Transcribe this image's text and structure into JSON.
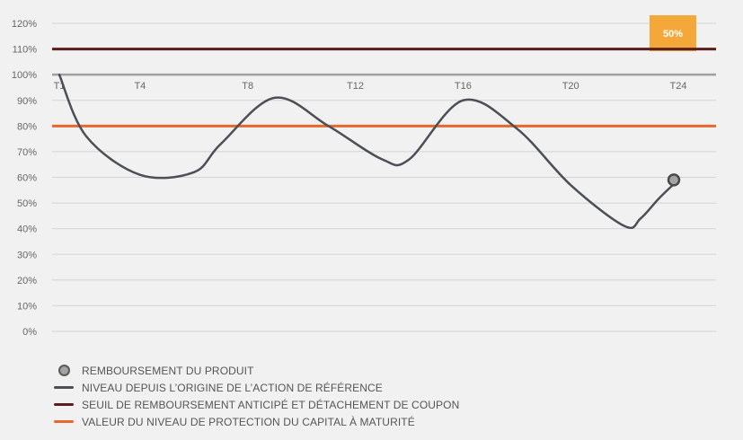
{
  "colors": {
    "background": "#f1f1f1",
    "grid": "#d4d4d4",
    "axis_text": "#666666",
    "series_line": "#4d4f57",
    "autocall_line": "#5a1f1d",
    "protection_line": "#e8672a",
    "coupon_box": "#f5a83a",
    "marker_fill": "#a3a3a3"
  },
  "chart_data": {
    "type": "line",
    "ylim": [
      0,
      120
    ],
    "y_ticks": [
      "0%",
      "10%",
      "20%",
      "30%",
      "40%",
      "50%",
      "60%",
      "70%",
      "80%",
      "90%",
      "100%",
      "110%",
      "120%"
    ],
    "x_ticks": [
      "T1",
      "T4",
      "T8",
      "T12",
      "T16",
      "T20",
      "T24"
    ],
    "x_range": [
      1,
      25
    ],
    "series": [
      {
        "key": "reference",
        "x": [
          1,
          2,
          4,
          6,
          7,
          9,
          11,
          13,
          14,
          16,
          18,
          20,
          22,
          22.6,
          23.3,
          24
        ],
        "y": [
          100,
          76,
          61,
          62,
          73,
          91,
          80,
          67,
          67,
          90,
          79,
          57,
          41,
          44,
          52,
          59
        ]
      }
    ],
    "reference_lines": {
      "autocall": 110,
      "protection": 80,
      "initial": 100
    },
    "marker": {
      "x": 24,
      "y": 59
    },
    "coupon_label": {
      "x": 24,
      "text": "50%"
    }
  },
  "legend": [
    {
      "key": "marker",
      "label": "REMBOURSEMENT DU PRODUIT"
    },
    {
      "key": "reference",
      "label": "NIVEAU DEPUIS L’ORIGINE DE L’ACTION DE RÉFÉRENCE"
    },
    {
      "key": "autocall",
      "label": "SEUIL DE REMBOURSEMENT ANTICIPÉ ET DÉTACHEMENT DE COUPON"
    },
    {
      "key": "protection",
      "label": "VALEUR DU NIVEAU DE PROTECTION DU CAPITAL À MATURITÉ"
    }
  ]
}
